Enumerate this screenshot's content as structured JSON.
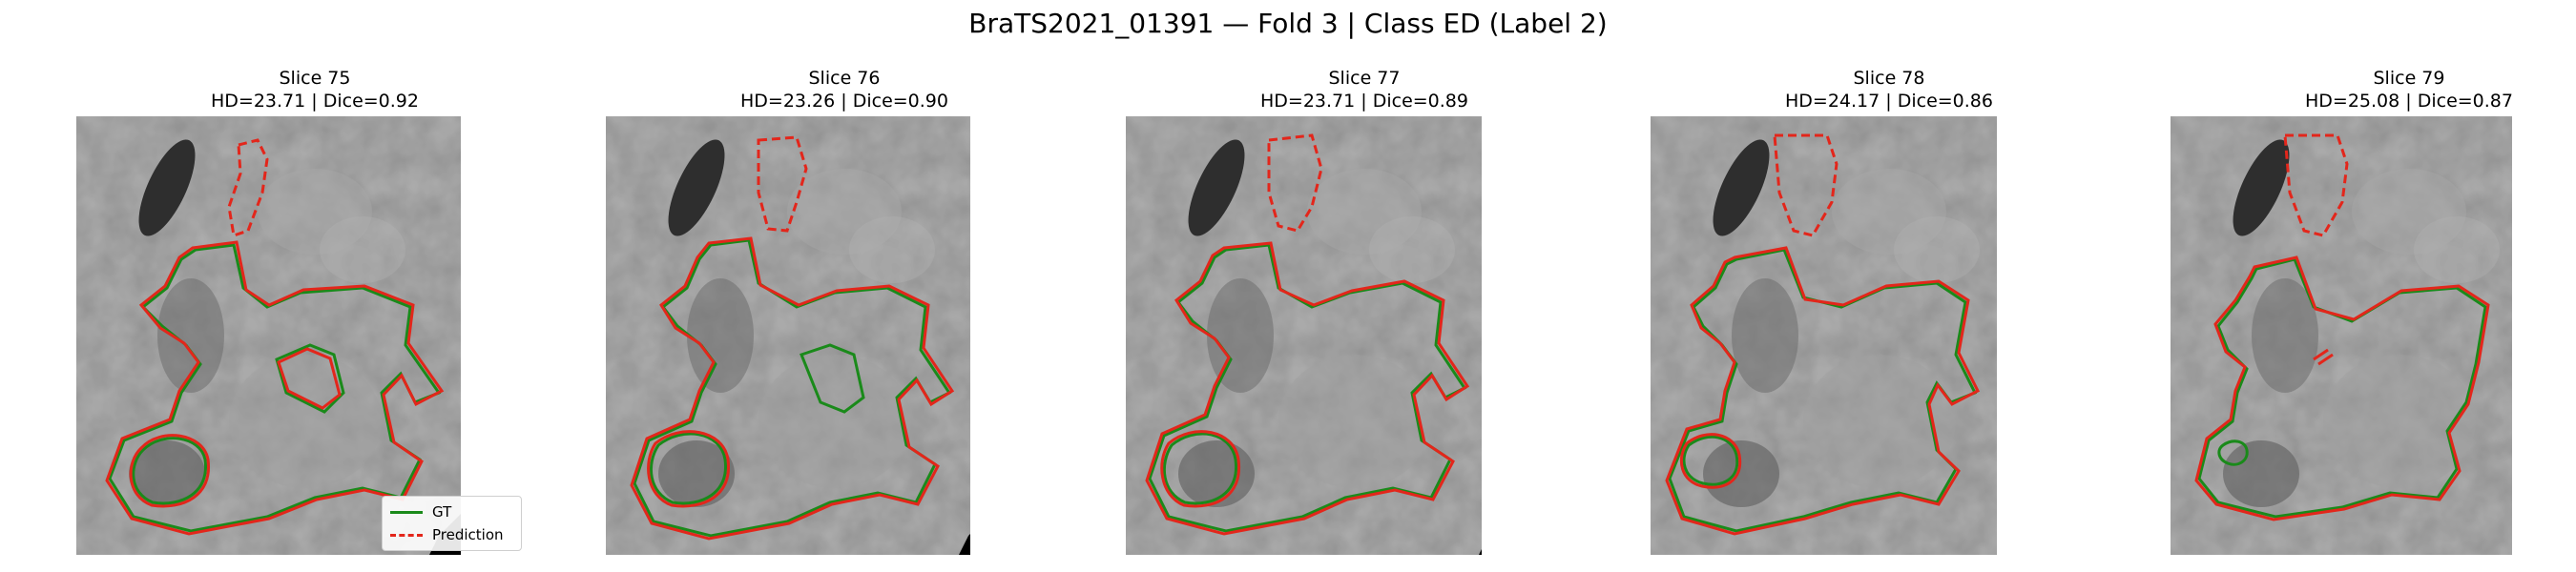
{
  "figure": {
    "suptitle": "BraTS2021_01391 — Fold 3 | Class ED (Label 2)",
    "colors": {
      "gt": "#1a8a1a",
      "prediction": "#e3261b",
      "background": "#ffffff"
    }
  },
  "panels": [
    {
      "title": "Slice 75",
      "metrics": "HD=23.71 | Dice=0.92"
    },
    {
      "title": "Slice 76",
      "metrics": "HD=23.26 | Dice=0.90"
    },
    {
      "title": "Slice 77",
      "metrics": "HD=23.71 | Dice=0.89"
    },
    {
      "title": "Slice 78",
      "metrics": "HD=24.17 | Dice=0.86"
    },
    {
      "title": "Slice 79",
      "metrics": "HD=25.08 | Dice=0.87"
    }
  ],
  "legend": {
    "gt_label": "GT",
    "prediction_label": "Prediction"
  }
}
